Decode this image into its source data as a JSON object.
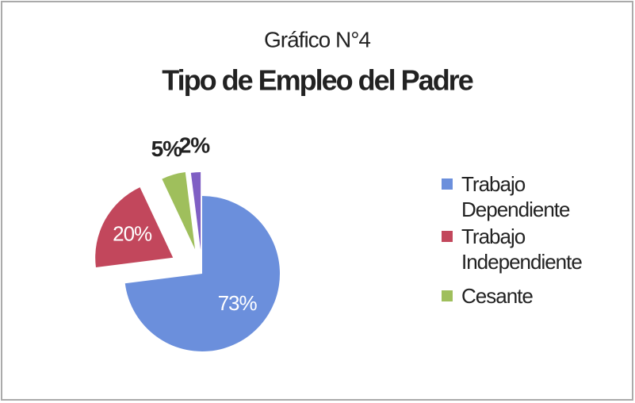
{
  "chart_data": {
    "type": "pie",
    "title": "Gráfico N°4",
    "subtitle": "Tipo de Empleo del Padre",
    "categories": [
      "Trabajo Dependiente",
      "Trabajo Independiente",
      "Cesante",
      null
    ],
    "values": [
      73,
      20,
      5,
      2
    ],
    "value_labels": [
      "73%",
      "20%",
      "5%",
      "2%"
    ],
    "colors": [
      "#6b8fdc",
      "#c2475c",
      "#9fbf5c",
      "#7f5fc4"
    ],
    "legend": "right"
  }
}
